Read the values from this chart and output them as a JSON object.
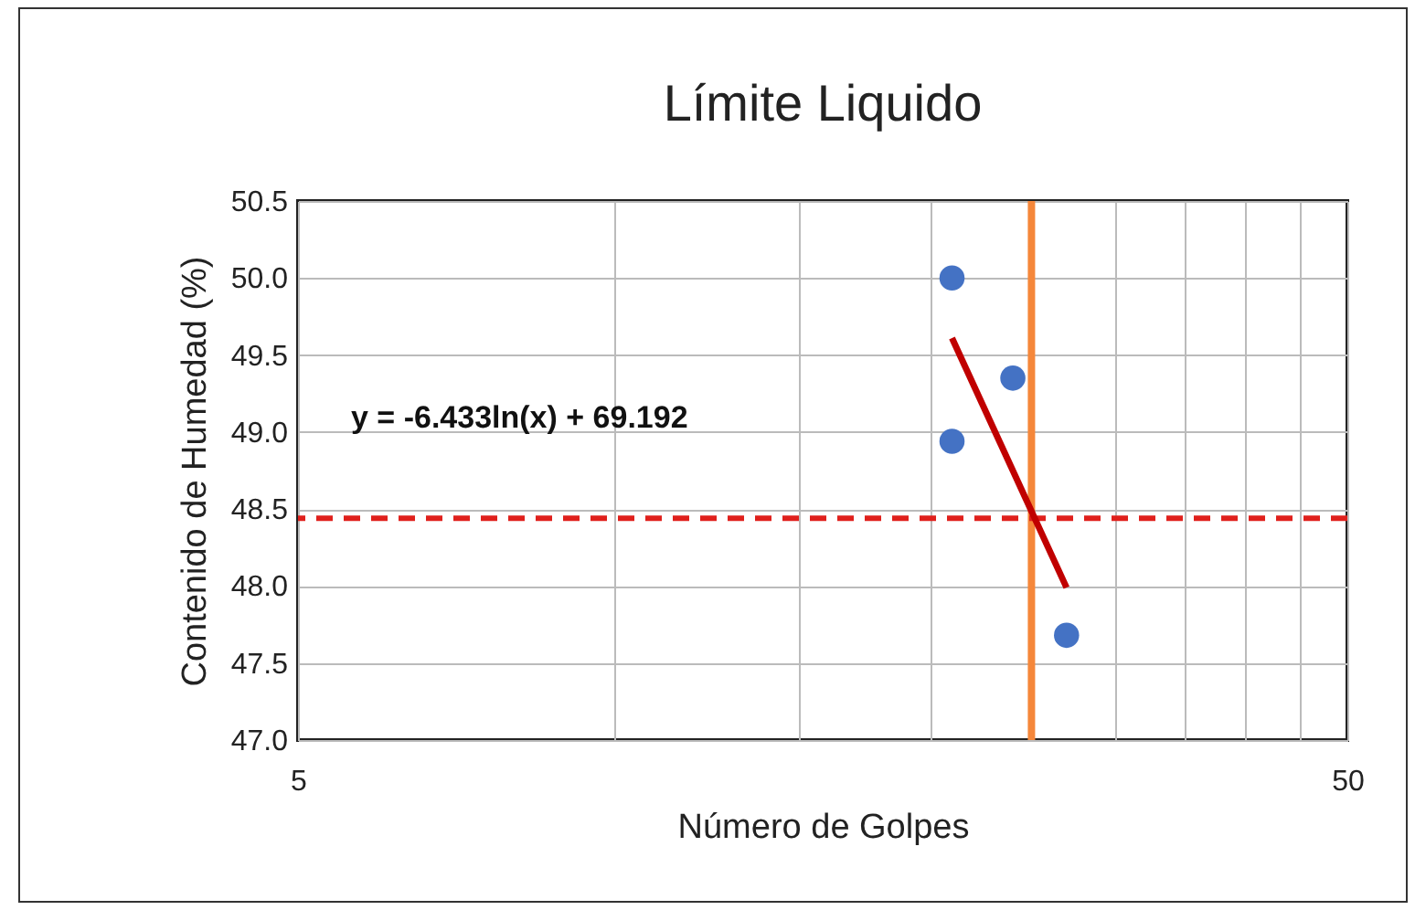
{
  "chart_data": {
    "type": "scatter",
    "title": "Límite Liquido",
    "xlabel": "Número de Golpes",
    "ylabel": "Contenido de Humedad (%)",
    "log": "x",
    "xlim": [
      5,
      50
    ],
    "xticks": [
      5,
      {
        "value": 10,
        "label": null
      },
      {
        "value": 15,
        "label": null
      },
      {
        "value": 20,
        "label": null
      },
      {
        "value": 25,
        "label": null
      },
      {
        "value": 30,
        "label": null
      },
      {
        "value": 35,
        "label": null
      },
      {
        "value": 40,
        "label": null
      },
      {
        "value": 45,
        "label": null
      },
      50
    ],
    "ylim": [
      47,
      50.5
    ],
    "yticks": [
      {
        "value": 47,
        "label": "47.0"
      },
      {
        "value": 47.5,
        "label": "47.5"
      },
      {
        "value": 48,
        "label": "48.0"
      },
      {
        "value": 48.5,
        "label": "48.5"
      },
      {
        "value": 49,
        "label": "49.0"
      },
      {
        "value": 49.5,
        "label": "49.5"
      },
      {
        "value": 50,
        "label": "50.0"
      },
      {
        "value": 50.5,
        "label": "50.5"
      }
    ],
    "grid": true,
    "series": [
      {
        "color": "#4472c4",
        "marker": "circle",
        "x": [
          21,
          21,
          24,
          27
        ],
        "values": [
          50.0,
          48.94,
          49.35,
          47.68
        ]
      },
      {
        "type": "line",
        "color": "#c00000",
        "x": [
          21,
          27
        ],
        "values": [
          49.61,
          47.99
        ]
      }
    ],
    "ref_lines": [
      {
        "axis": "y",
        "value": 48.44,
        "color": "#e0201c",
        "line_style": "dashed"
      },
      {
        "axis": "x",
        "value": 25,
        "color": "#f5873a",
        "line_style": "solid"
      }
    ],
    "annotations": [
      "y = -6.433ln(x) + 69.192"
    ]
  }
}
